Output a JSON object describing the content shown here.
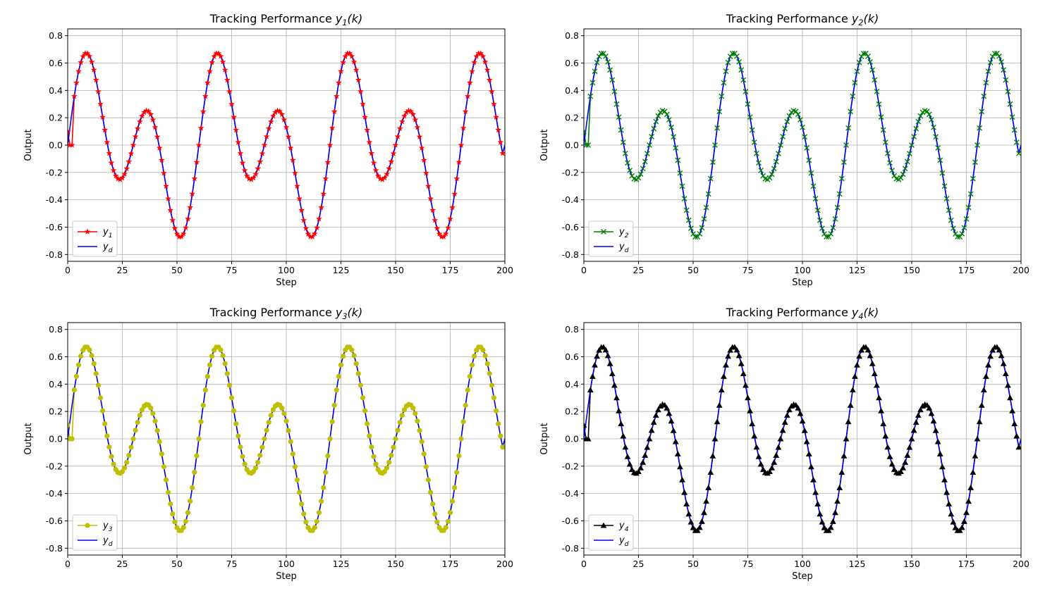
{
  "colors": {
    "reference": "#0000ff",
    "grid": "#b0b0b0",
    "y1": "#ff0000",
    "y2": "#008000",
    "y3": "#bfbf00",
    "y4": "#000000"
  },
  "chart_data": [
    {
      "type": "line",
      "title_prefix": "Tracking Performance ",
      "title_var": "y",
      "title_sub": "1",
      "title_suffix": "(k)",
      "xlabel": "Step",
      "ylabel": "Output",
      "xlim": [
        0,
        200
      ],
      "ylim": [
        -0.85,
        0.85
      ],
      "xticks": [
        0,
        25,
        50,
        75,
        100,
        125,
        150,
        175,
        200
      ],
      "yticks": [
        -0.8,
        -0.6,
        -0.4,
        -0.2,
        0.0,
        0.2,
        0.4,
        0.6,
        0.8
      ],
      "grid": true,
      "legend_position": "lower-left",
      "reference": {
        "name_var": "y",
        "name_sub": "d",
        "formula": "0.3*sin(2*pi*k/60) + 0.45*sin(2*pi*k/30)",
        "x_range": [
          0,
          199
        ],
        "final_point": [
          200,
          0.0
        ]
      },
      "series": {
        "name_var": "y",
        "name_sub": "1",
        "color": "#ff0000",
        "marker": "star",
        "initial": [
          [
            0,
            0.1
          ],
          [
            1,
            0.0
          ],
          [
            2,
            0.0
          ]
        ],
        "follows_reference_from_step": 3
      }
    },
    {
      "type": "line",
      "title_prefix": "Tracking Performance ",
      "title_var": "y",
      "title_sub": "2",
      "title_suffix": "(k)",
      "xlabel": "Step",
      "ylabel": "Output",
      "xlim": [
        0,
        200
      ],
      "ylim": [
        -0.85,
        0.85
      ],
      "xticks": [
        0,
        25,
        50,
        75,
        100,
        125,
        150,
        175,
        200
      ],
      "yticks": [
        -0.8,
        -0.6,
        -0.4,
        -0.2,
        0.0,
        0.2,
        0.4,
        0.6,
        0.8
      ],
      "grid": true,
      "legend_position": "lower-left",
      "reference": {
        "name_var": "y",
        "name_sub": "d",
        "formula": "0.3*sin(2*pi*k/60) + 0.45*sin(2*pi*k/30)",
        "x_range": [
          0,
          199
        ],
        "final_point": [
          200,
          0.0
        ]
      },
      "series": {
        "name_var": "y",
        "name_sub": "2",
        "color": "#008000",
        "marker": "x",
        "initial": [
          [
            0,
            0.1
          ],
          [
            1,
            0.0
          ],
          [
            2,
            0.0
          ]
        ],
        "follows_reference_from_step": 3
      }
    },
    {
      "type": "line",
      "title_prefix": "Tracking Performance ",
      "title_var": "y",
      "title_sub": "3",
      "title_suffix": "(k)",
      "xlabel": "Step",
      "ylabel": "Output",
      "xlim": [
        0,
        200
      ],
      "ylim": [
        -0.85,
        0.85
      ],
      "xticks": [
        0,
        25,
        50,
        75,
        100,
        125,
        150,
        175,
        200
      ],
      "yticks": [
        -0.8,
        -0.6,
        -0.4,
        -0.2,
        0.0,
        0.2,
        0.4,
        0.6,
        0.8
      ],
      "grid": true,
      "legend_position": "lower-left",
      "reference": {
        "name_var": "y",
        "name_sub": "d",
        "formula": "0.3*sin(2*pi*k/60) + 0.45*sin(2*pi*k/30)",
        "x_range": [
          0,
          199
        ],
        "final_point": [
          200,
          0.0
        ]
      },
      "series": {
        "name_var": "y",
        "name_sub": "3",
        "color": "#bfbf00",
        "marker": "circle",
        "initial": [
          [
            0,
            0.1
          ],
          [
            1,
            0.0
          ],
          [
            2,
            0.0
          ]
        ],
        "follows_reference_from_step": 3
      }
    },
    {
      "type": "line",
      "title_prefix": "Tracking Performance ",
      "title_var": "y",
      "title_sub": "4",
      "title_suffix": "(k)",
      "xlabel": "Step",
      "ylabel": "Output",
      "xlim": [
        0,
        200
      ],
      "ylim": [
        -0.85,
        0.85
      ],
      "xticks": [
        0,
        25,
        50,
        75,
        100,
        125,
        150,
        175,
        200
      ],
      "yticks": [
        -0.8,
        -0.6,
        -0.4,
        -0.2,
        0.0,
        0.2,
        0.4,
        0.6,
        0.8
      ],
      "grid": true,
      "legend_position": "lower-left",
      "reference": {
        "name_var": "y",
        "name_sub": "d",
        "formula": "0.3*sin(2*pi*k/60) + 0.45*sin(2*pi*k/30)",
        "x_range": [
          0,
          199
        ],
        "final_point": [
          200,
          0.0
        ]
      },
      "series": {
        "name_var": "y",
        "name_sub": "4",
        "color": "#000000",
        "marker": "triangle",
        "initial": [
          [
            0,
            0.1
          ],
          [
            1,
            0.0
          ],
          [
            2,
            0.0
          ]
        ],
        "follows_reference_from_step": 3
      }
    }
  ]
}
